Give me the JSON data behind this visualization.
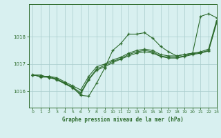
{
  "title": "Graphe pression niveau de la mer (hPa)",
  "bg_color": "#d8f0f0",
  "grid_color": "#a8cccc",
  "line_color": "#2d6b2d",
  "xlim": [
    -0.5,
    23
  ],
  "ylim": [
    1015.4,
    1019.2
  ],
  "yticks": [
    1016,
    1017,
    1018
  ],
  "xticks": [
    0,
    1,
    2,
    3,
    4,
    5,
    6,
    7,
    8,
    9,
    10,
    11,
    12,
    13,
    14,
    15,
    16,
    17,
    18,
    19,
    20,
    21,
    22,
    23
  ],
  "series1": [
    1016.6,
    1016.6,
    1016.5,
    1016.45,
    1016.3,
    1016.15,
    1015.85,
    1015.82,
    1016.3,
    1016.85,
    1017.5,
    1017.75,
    1018.1,
    1018.1,
    1018.15,
    1017.95,
    1017.65,
    1017.45,
    1017.3,
    1017.35,
    1017.4,
    1018.75,
    1018.85,
    1018.7
  ],
  "series2": [
    1016.6,
    1016.55,
    1016.55,
    1016.5,
    1016.35,
    1016.2,
    1016.05,
    1016.55,
    1016.9,
    1017.0,
    1017.15,
    1017.25,
    1017.4,
    1017.5,
    1017.55,
    1017.5,
    1017.35,
    1017.3,
    1017.3,
    1017.35,
    1017.4,
    1017.45,
    1017.55,
    1018.6
  ],
  "series3": [
    1016.6,
    1016.55,
    1016.55,
    1016.45,
    1016.3,
    1016.15,
    1015.95,
    1016.45,
    1016.82,
    1016.95,
    1017.1,
    1017.2,
    1017.35,
    1017.45,
    1017.5,
    1017.45,
    1017.3,
    1017.25,
    1017.25,
    1017.3,
    1017.38,
    1017.42,
    1017.5,
    1018.55
  ],
  "series4": [
    1016.62,
    1016.52,
    1016.52,
    1016.42,
    1016.28,
    1016.12,
    1015.9,
    1016.42,
    1016.78,
    1016.9,
    1017.05,
    1017.18,
    1017.3,
    1017.4,
    1017.45,
    1017.4,
    1017.28,
    1017.22,
    1017.22,
    1017.28,
    1017.35,
    1017.4,
    1017.48,
    1018.5
  ]
}
